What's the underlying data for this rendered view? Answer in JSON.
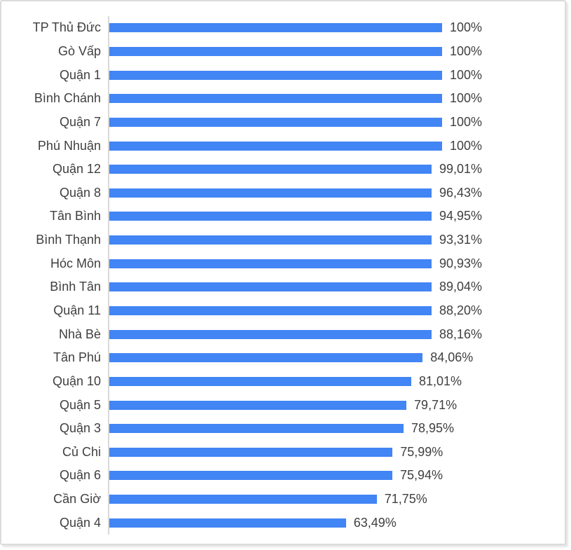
{
  "chart_data": {
    "type": "bar",
    "orientation": "horizontal",
    "title": "",
    "xlabel": "",
    "ylabel": "",
    "xlim": [
      0,
      100
    ],
    "grid": "off",
    "legend": "none",
    "bar_color": "#4285F4",
    "axis_color": "#D9D9D9",
    "label_color": "#3F3F3F",
    "categories": [
      "TP Thủ Đức",
      "Gò Vấp",
      "Quận 1",
      "Bình Chánh",
      "Quận 7",
      "Phú Nhuận",
      "Quận 12",
      "Quận 8",
      "Tân Bình",
      "Bình Thạnh",
      "Hóc Môn",
      "Bình Tân",
      "Quận 11",
      "Nhà Bè",
      "Tân Phú",
      "Quận 10",
      "Quận 5",
      "Quận 3",
      "Củ Chi",
      "Quận 6",
      "Cần Giờ",
      "Quận 4"
    ],
    "values": [
      100,
      100,
      100,
      100,
      100,
      100,
      99.01,
      96.43,
      94.95,
      93.31,
      90.93,
      89.04,
      88.2,
      88.16,
      84.06,
      81.01,
      79.71,
      78.95,
      75.99,
      75.94,
      71.75,
      63.49
    ],
    "value_labels": [
      "100%",
      "100%",
      "100%",
      "100%",
      "100%",
      "100%",
      "99,01%",
      "96,43%",
      "94,95%",
      "93,31%",
      "90,93%",
      "89,04%",
      "88,20%",
      "88,16%",
      "84,06%",
      "81,01%",
      "79,71%",
      "78,95%",
      "75,99%",
      "75,94%",
      "71,75%",
      "63,49%"
    ]
  }
}
